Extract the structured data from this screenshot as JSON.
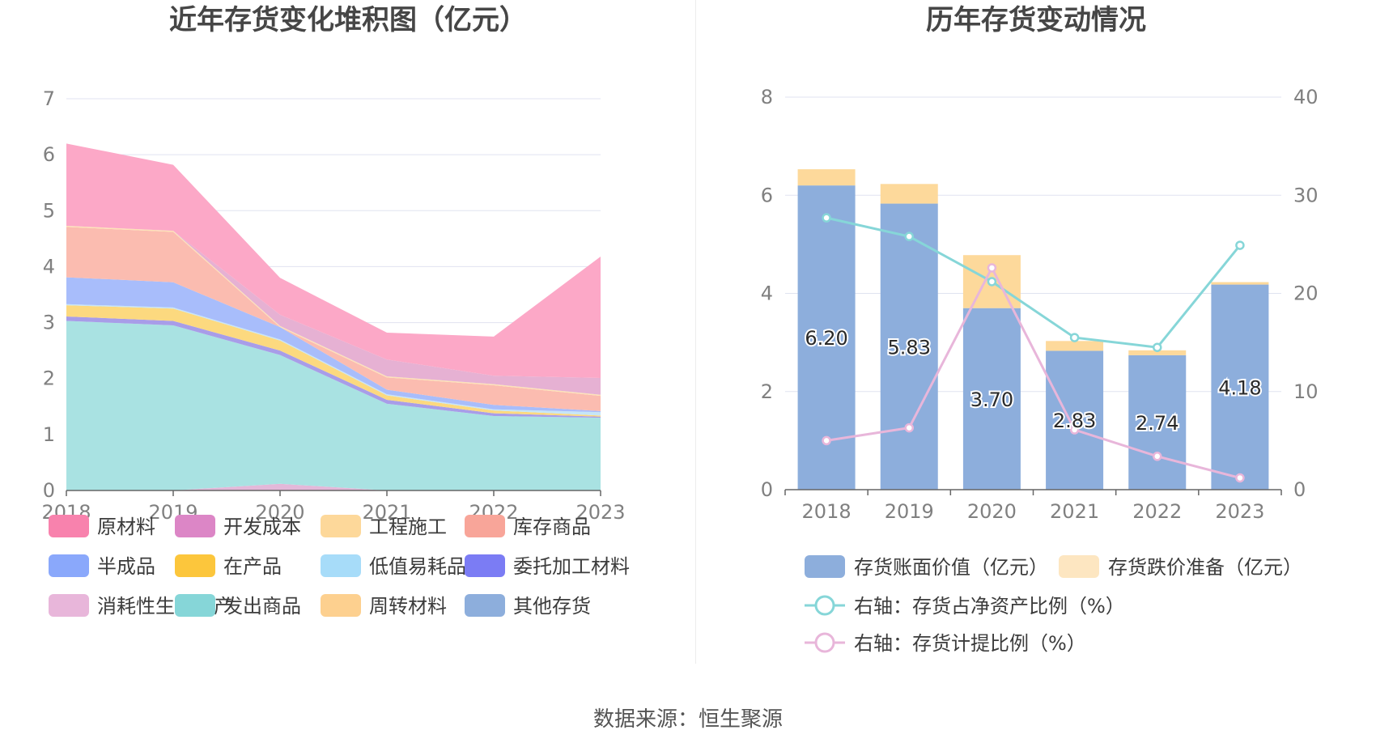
{
  "titles": {
    "left": "近年存货变化堆积图（亿元）",
    "right": "历年存货变动情况"
  },
  "source": "数据来源：恒生聚源",
  "chart_data": [
    {
      "type": "area",
      "stacked": true,
      "title": "近年存货变化堆积图（亿元）",
      "x": [
        "2018",
        "2019",
        "2020",
        "2021",
        "2022",
        "2023"
      ],
      "ylim": [
        0,
        7
      ],
      "yticks": [
        0,
        1,
        2,
        3,
        4,
        5,
        6,
        7
      ],
      "grid": true,
      "legend_position": "bottom",
      "legend": [
        "原材料",
        "开发成本",
        "工程施工",
        "库存商品",
        "半成品",
        "在产品",
        "低值易耗品",
        "委托加工材料",
        "消耗性生物资产",
        "发出商品",
        "周转材料",
        "其他存货"
      ],
      "series": [
        {
          "name": "消耗性生物资产",
          "color": "#e3b8d9",
          "values": [
            0,
            0,
            0.12,
            0,
            0,
            0
          ]
        },
        {
          "name": "发出商品",
          "color": "#a9e2e2",
          "values": [
            3.03,
            2.95,
            2.3,
            1.55,
            1.33,
            1.3
          ]
        },
        {
          "name": "委托加工材料",
          "color": "#a89de8",
          "values": [
            0.08,
            0.08,
            0.08,
            0.07,
            0.05,
            0.02
          ]
        },
        {
          "name": "在产品",
          "color": "#fcd97f",
          "values": [
            0.2,
            0.22,
            0.18,
            0.08,
            0.05,
            0.02
          ]
        },
        {
          "name": "低值易耗品",
          "color": "#c6e5f7",
          "values": [
            0.02,
            0.02,
            0.02,
            0.02,
            0.02,
            0.06
          ]
        },
        {
          "name": "半成品",
          "color": "#a8bdfb",
          "values": [
            0.48,
            0.45,
            0.22,
            0.08,
            0.08,
            0.02
          ]
        },
        {
          "name": "库存商品",
          "color": "#fbbcb0",
          "values": [
            0.9,
            0.9,
            0.0,
            0.22,
            0.35,
            0.27
          ]
        },
        {
          "name": "周转材料",
          "color": "#fde2b6",
          "values": [
            0.02,
            0.02,
            0.02,
            0.02,
            0.02,
            0.02
          ]
        },
        {
          "name": "开发成本",
          "color": "#e6b1d3",
          "values": [
            0,
            0,
            0.2,
            0.3,
            0.15,
            0.3
          ]
        },
        {
          "name": "原材料",
          "color": "#fca8c7",
          "values": [
            1.47,
            1.18,
            0.66,
            0.48,
            0.7,
            2.17
          ]
        }
      ],
      "legend_colors": {
        "原材料": "#f882ad",
        "开发成本": "#dc86c6",
        "工程施工": "#fdd89a",
        "库存商品": "#f8a599",
        "半成品": "#8aa8fb",
        "在产品": "#fcc63c",
        "低值易耗品": "#a7dcf9",
        "委托加工材料": "#7b7cf4",
        "消耗性生物资产": "#e8b6da",
        "发出商品": "#86d6d8",
        "周转材料": "#fdd08f",
        "其他存货": "#8daedc"
      }
    },
    {
      "type": "bar",
      "stacked": true,
      "title": "历年存货变动情况",
      "categories": [
        "2018",
        "2019",
        "2020",
        "2021",
        "2022",
        "2023"
      ],
      "ylim": [
        0,
        8
      ],
      "yticks": [
        0,
        2,
        4,
        6,
        8
      ],
      "y2lim": [
        0,
        40
      ],
      "y2ticks": [
        0,
        10,
        20,
        30,
        40
      ],
      "grid": true,
      "legend_position": "bottom",
      "series": [
        {
          "name": "存货账面价值（亿元）",
          "color": "#8daedc",
          "axis": "left",
          "kind": "bar",
          "values": [
            6.2,
            5.83,
            3.7,
            2.83,
            2.74,
            4.18
          ],
          "labels": [
            "6.20",
            "5.83",
            "3.70",
            "2.83",
            "2.74",
            "4.18"
          ]
        },
        {
          "name": "存货跌价准备（亿元）",
          "color": "#fdd99b",
          "axis": "left",
          "kind": "bar",
          "values": [
            0.33,
            0.4,
            1.08,
            0.2,
            0.1,
            0.05
          ]
        },
        {
          "name": "右轴：存货占净资产比例（%）",
          "color": "#86d6d8",
          "axis": "right",
          "kind": "line",
          "values": [
            27.7,
            25.8,
            21.2,
            15.5,
            14.5,
            24.9
          ]
        },
        {
          "name": "右轴：存货计提比例（%）",
          "color": "#e8b6da",
          "axis": "right",
          "kind": "line",
          "values": [
            5.0,
            6.3,
            22.6,
            6.1,
            3.4,
            1.2
          ]
        }
      ],
      "legend_colors": [
        "#8daedc",
        "#fde6c1",
        "#86d6d8",
        "#e8b6da"
      ]
    }
  ]
}
